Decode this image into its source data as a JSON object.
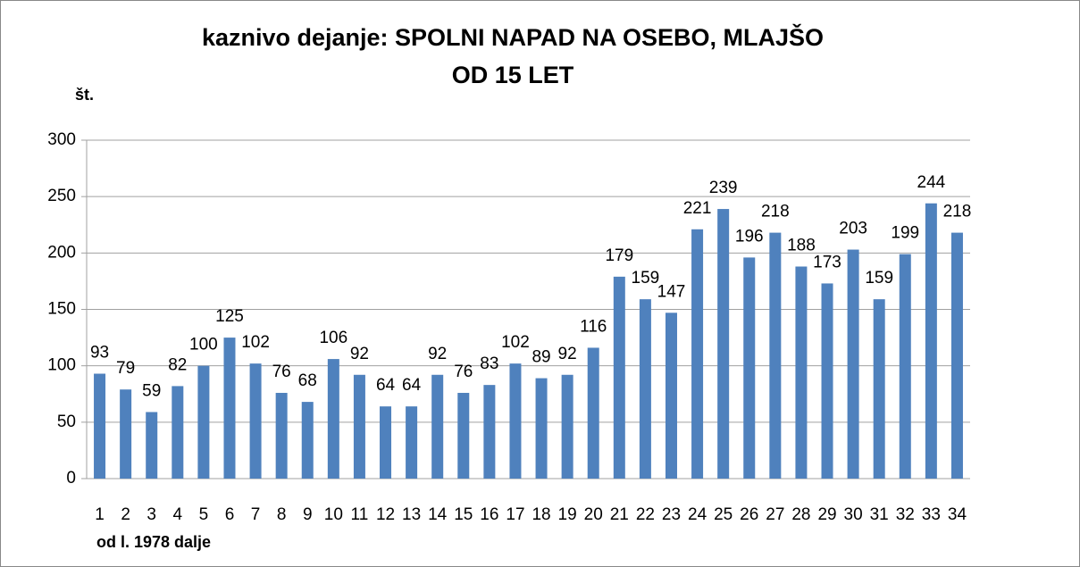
{
  "chart_data": {
    "type": "bar",
    "title": [
      "kaznivo dejanje:  SPOLNI  NAPAD  NA  OSEBO, MLAJŠO",
      "OD  15 LET"
    ],
    "y_label": "št.",
    "x_label": "od l. 1978 dalje",
    "categories": [
      "1",
      "2",
      "3",
      "4",
      "5",
      "6",
      "7",
      "8",
      "9",
      "10",
      "11",
      "12",
      "13",
      "14",
      "15",
      "16",
      "17",
      "18",
      "19",
      "20",
      "21",
      "22",
      "23",
      "24",
      "25",
      "26",
      "27",
      "28",
      "29",
      "30",
      "31",
      "32",
      "33",
      "34"
    ],
    "values": [
      93,
      79,
      59,
      82,
      100,
      125,
      102,
      76,
      68,
      106,
      92,
      64,
      64,
      92,
      76,
      83,
      102,
      89,
      92,
      116,
      179,
      159,
      147,
      221,
      239,
      196,
      218,
      188,
      173,
      203,
      159,
      199,
      244,
      218
    ],
    "color": "#4f81bd",
    "ylim": [
      0,
      300
    ],
    "yticks": [
      0,
      50,
      100,
      150,
      200,
      250,
      300
    ],
    "grid": true
  }
}
